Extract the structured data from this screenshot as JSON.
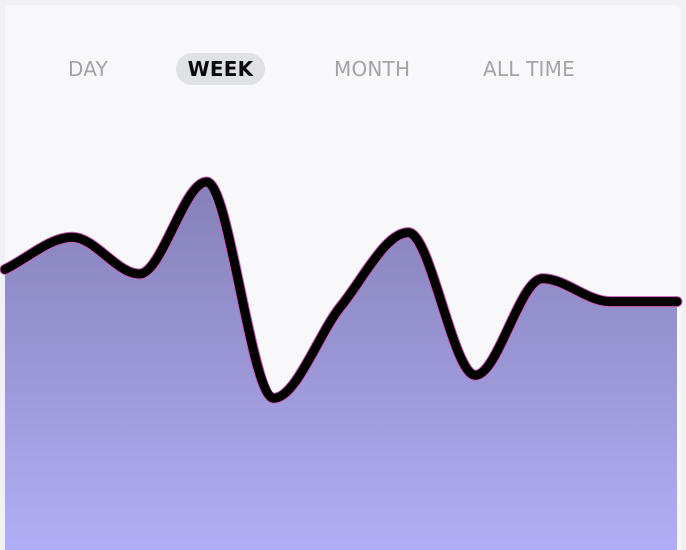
{
  "tabs": [
    {
      "label": "DAY",
      "active": false
    },
    {
      "label": "WEEK",
      "active": true
    },
    {
      "label": "MONTH",
      "active": false
    },
    {
      "label": "ALL TIME",
      "active": false
    }
  ],
  "colors": {
    "line": "#000000",
    "area_top": "#8580b8",
    "area_bottom": "#b1aef5",
    "glow": "#cc5fb8"
  },
  "chart_data": {
    "type": "area",
    "title": "",
    "xlabel": "",
    "ylabel": "",
    "x": [
      0,
      1,
      2,
      3,
      4,
      5,
      6,
      7,
      8,
      9,
      10
    ],
    "values": [
      61,
      68,
      60,
      80,
      33,
      53,
      69,
      38,
      59,
      54,
      54
    ],
    "ylim": [
      0,
      100
    ],
    "grid": false,
    "legend": "none"
  }
}
